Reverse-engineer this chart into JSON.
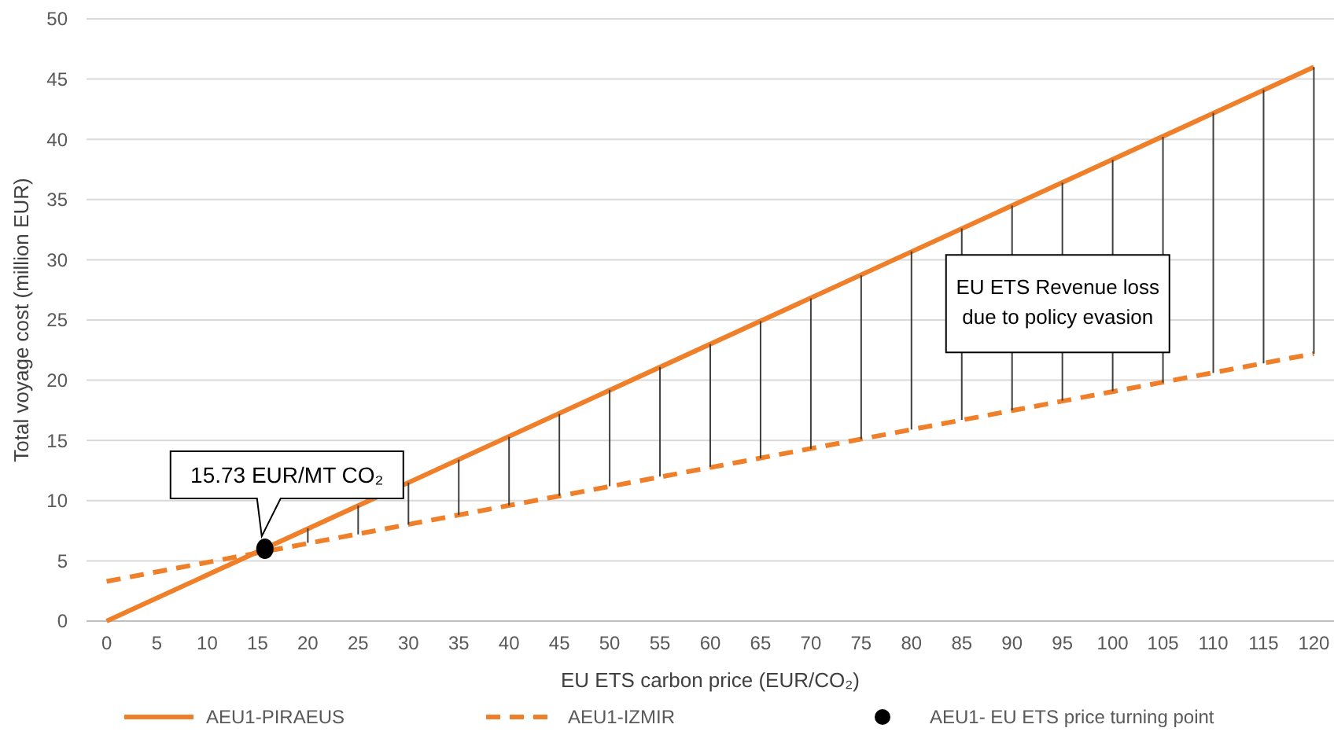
{
  "chart_data": {
    "type": "line",
    "xlabel": "EU ETS carbon price (EUR/CO₂)",
    "ylabel": "Total voyage cost (million EUR)",
    "xlim": [
      -2,
      122
    ],
    "xticks": [
      0,
      5,
      10,
      15,
      20,
      25,
      30,
      35,
      40,
      45,
      50,
      55,
      60,
      65,
      70,
      75,
      80,
      85,
      90,
      95,
      100,
      105,
      110,
      115,
      120
    ],
    "ylim": [
      0,
      50
    ],
    "yticks": [
      0,
      5,
      10,
      15,
      20,
      25,
      30,
      35,
      40,
      45,
      50
    ],
    "grid": "y",
    "legend": "bottom",
    "series": [
      {
        "name": "AEU1-PIRAEUS",
        "color": "#f07f2a",
        "x": [
          0,
          120
        ],
        "values": [
          0,
          46
        ],
        "line_style": "solid",
        "marker": "none"
      },
      {
        "name": "AEU1-IZMIR",
        "color": "#f07f2a",
        "x": [
          0,
          120
        ],
        "values": [
          3.3,
          22.2
        ],
        "line_style": "dashed",
        "marker": "none"
      },
      {
        "type": "bar",
        "color": "#404040",
        "x": [
          20,
          25,
          30,
          35,
          40,
          45,
          50,
          55,
          60,
          65,
          70,
          75,
          80,
          85,
          90,
          95,
          100,
          105,
          110,
          115,
          120
        ],
        "base": [
          6.5,
          7.2,
          8.0,
          8.8,
          9.6,
          10.4,
          11.2,
          12.0,
          12.8,
          13.5,
          14.3,
          15.1,
          15.9,
          16.7,
          17.5,
          18.3,
          19.1,
          19.8,
          20.6,
          21.4,
          22.2
        ],
        "values": [
          1.2,
          2.4,
          3.5,
          4.6,
          5.7,
          6.8,
          8.0,
          9.1,
          10.2,
          11.4,
          12.5,
          13.6,
          14.8,
          15.9,
          17.0,
          18.1,
          19.2,
          20.4,
          21.6,
          22.7,
          23.8
        ]
      },
      {
        "type": "scatter",
        "name": "AEU1- EU ETS price turning point",
        "color": "#000000",
        "x": [
          15.73
        ],
        "values": [
          6.0
        ],
        "marker": "circle"
      }
    ],
    "annotations": [
      {
        "text": "15.73 EUR/MT CO₂",
        "x": 15.73,
        "y": 6.0
      },
      {
        "text": "EU ETS Revenue loss due to policy evasion",
        "x": 85,
        "y": 24
      }
    ]
  }
}
